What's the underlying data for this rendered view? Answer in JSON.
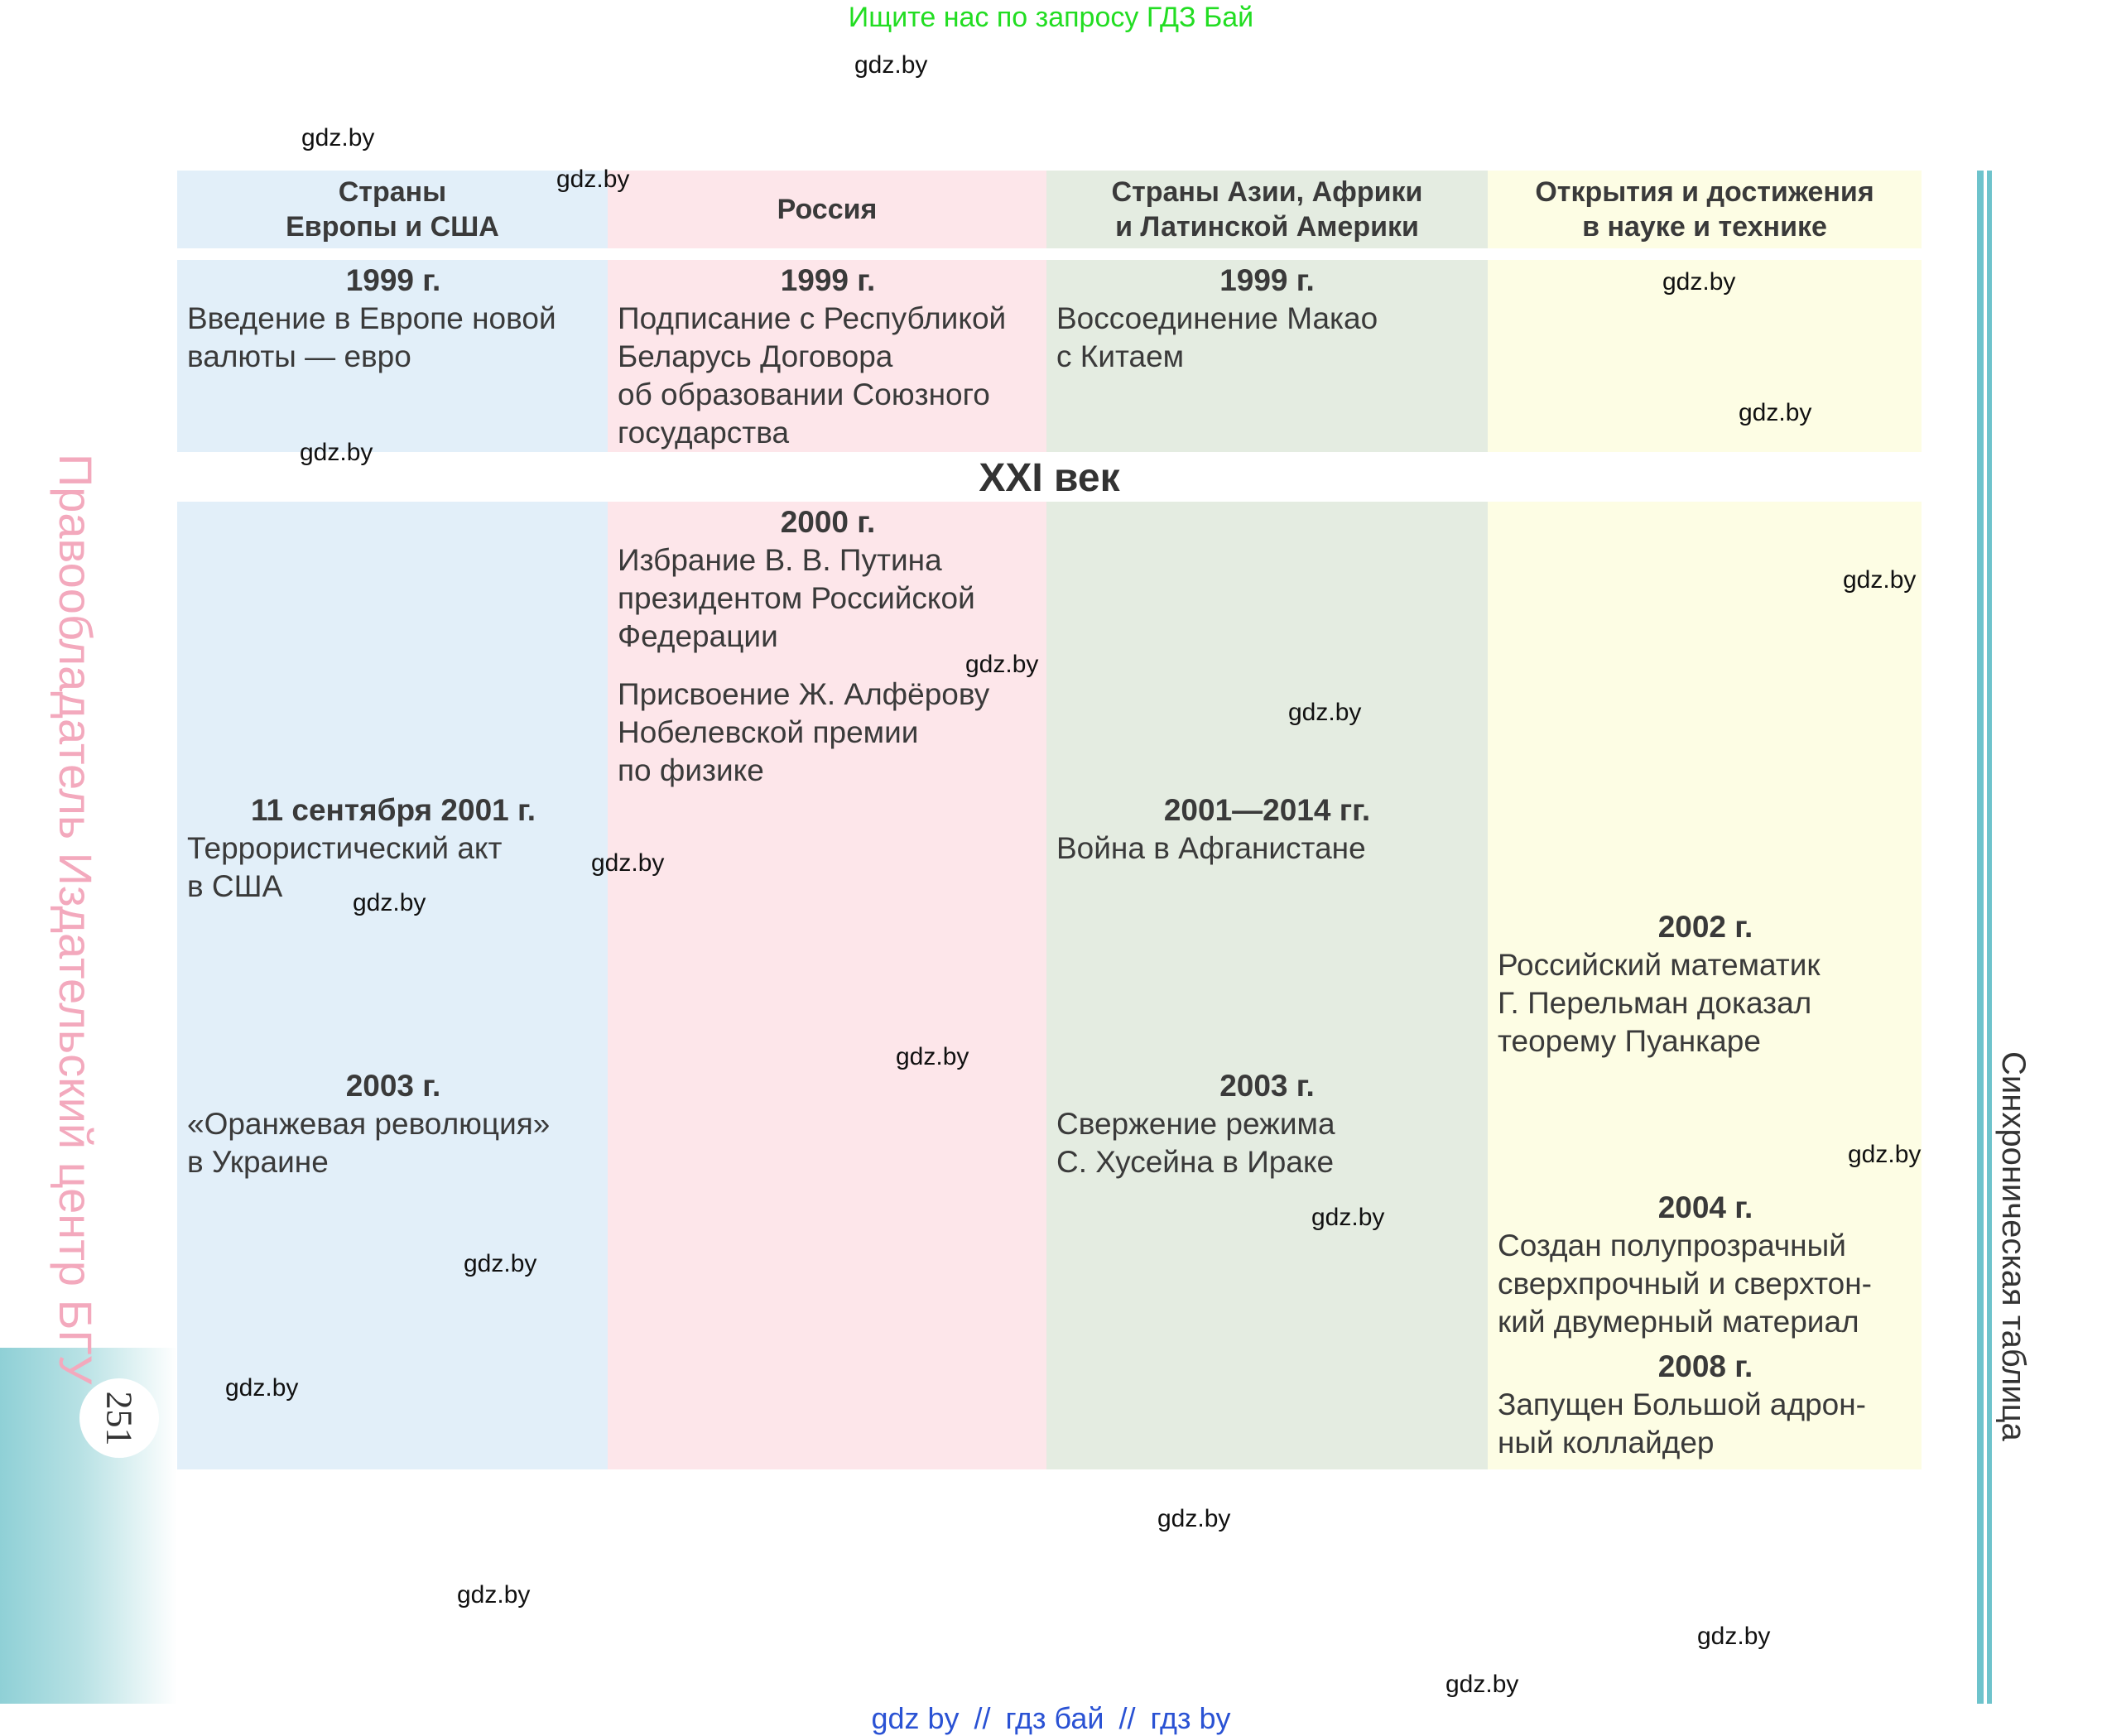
{
  "banner": "Ищите нас по запросу ГДЗ Бай",
  "watermark": "gdz.by",
  "headers": [
    "Страны\nЕвропы и США",
    "Россия",
    "Страны Азии, Африки\nи Латинской Америки",
    "Открытия и достижения\nв науке и технике"
  ],
  "century": "XXI век",
  "events": {
    "europe_1999": {
      "year": "1999 г.",
      "text": "Введение в Европе новой\nвалюты — евро"
    },
    "russia_1999": {
      "year": "1999 г.",
      "text": "Подписание с Республикой\nБеларусь Договора\nоб образовании Союзного\nгосударства"
    },
    "asia_1999": {
      "year": "1999 г.",
      "text": "Воссоединение Макао\nс Китаем"
    },
    "russia_2000": {
      "year": "2000 г.",
      "text": "Избрание В. В. Путина\nпрезидентом Российской\nФедерации"
    },
    "russia_2000b": {
      "text": "Присвоение Ж. Алфёрову\nНобелевской премии\nпо физике"
    },
    "europe_2001": {
      "year": "11 сентября 2001 г.",
      "text": "Террористический акт\nв США"
    },
    "asia_2001": {
      "year": "2001—2014 гг.",
      "text": "Война в Афганистане"
    },
    "science_2002": {
      "year": "2002 г.",
      "text": "Российский математик\nГ. Перельман доказал\nтеорему Пуанкаре"
    },
    "europe_2003": {
      "year": "2003 г.",
      "text": "«Оранжевая революция»\nв Украине"
    },
    "asia_2003": {
      "year": "2003 г.",
      "text": "Свержение режима\nС. Хусейна в Ираке"
    },
    "science_2004": {
      "year": "2004 г.",
      "text": "Создан полупрозрачный\nсверхпрочный и сверхтон-\nкий двумерный материал"
    },
    "science_2008": {
      "year": "2008 г.",
      "text": "Запущен Большой адрон-\nный коллайдер"
    }
  },
  "page_number": "251",
  "publisher": "Правообладатель Издательский центр БГУ",
  "side_title": "Синхроническая таблица",
  "footer": {
    "link1": "gdz by",
    "sep": "//",
    "link2": "гдз бай",
    "link3": "гдз by"
  }
}
